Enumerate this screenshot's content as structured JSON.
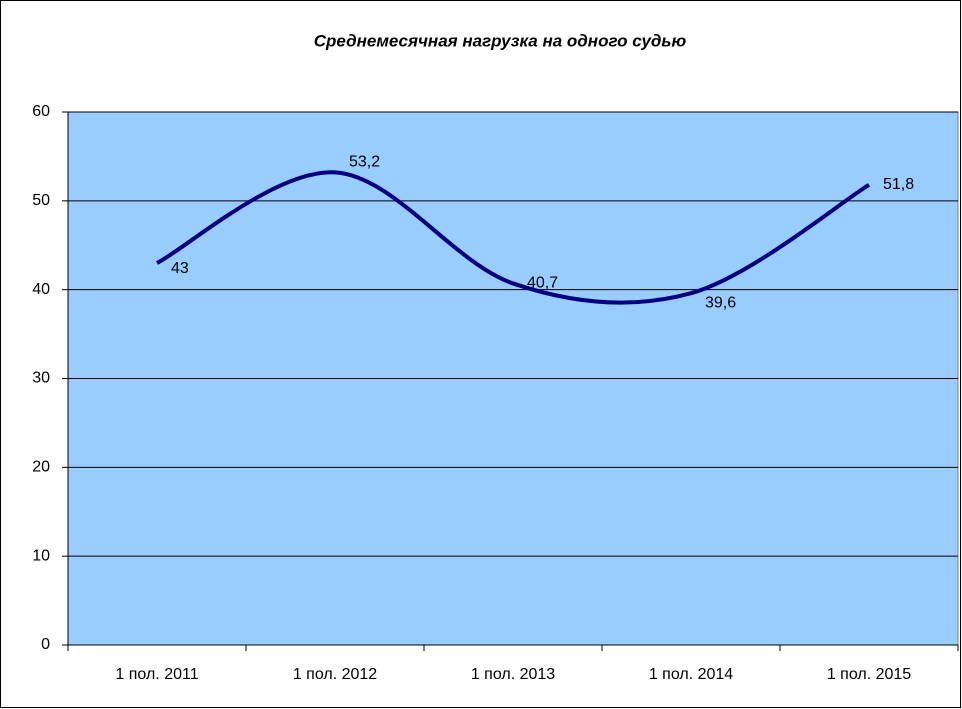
{
  "chart_data": {
    "type": "line",
    "title": "Среднемесячная нагрузка на одного судью",
    "categories": [
      "1 пол. 2011",
      "1 пол. 2012",
      "1 пол. 2013",
      "1 пол. 2014",
      "1 пол. 2015"
    ],
    "series": [
      {
        "color": "#000080",
        "values": [
          43,
          53.2,
          40.7,
          39.6,
          51.8
        ],
        "value_labels": [
          "43",
          "53,2",
          "40,7",
          "39,6",
          "51,8"
        ]
      }
    ],
    "ylim": [
      0,
      60
    ],
    "yticks": [
      0,
      10,
      20,
      30,
      40,
      50,
      60
    ],
    "grid": true,
    "smooth": true,
    "plot_background": "#99ccff"
  }
}
